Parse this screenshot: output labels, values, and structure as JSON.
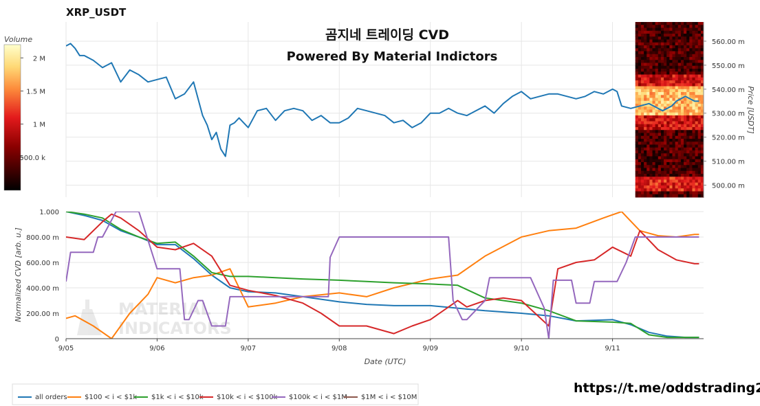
{
  "symbol": "XRP_USDT",
  "footer_link": "https://t.me/oddstrading2",
  "chart_data": [
    {
      "type": "line",
      "title": "곰지네 트레이딩 CVD",
      "subtitle": "Powered By Material Indictors",
      "ylabel": "Price [USDT]",
      "ylim": [
        0.495,
        0.568
      ],
      "yticks": [
        0.5,
        0.51,
        0.52,
        0.53,
        0.54,
        0.55,
        0.56
      ],
      "ytick_labels": [
        "500.00 m",
        "510.00 m",
        "520.00 m",
        "530.00 m",
        "540.00 m",
        "550.00 m",
        "560.00 m"
      ],
      "xlim": [
        0,
        7
      ],
      "grid": true,
      "series": [
        {
          "color": "#1f77b4",
          "x": [
            0,
            0.05,
            0.1,
            0.15,
            0.2,
            0.3,
            0.4,
            0.5,
            0.6,
            0.7,
            0.8,
            0.9,
            1.0,
            1.1,
            1.2,
            1.3,
            1.4,
            1.5,
            1.55,
            1.6,
            1.65,
            1.7,
            1.75,
            1.8,
            1.85,
            1.9,
            1.95,
            2.0,
            2.1,
            2.2,
            2.3,
            2.4,
            2.5,
            2.6,
            2.7,
            2.8,
            2.9,
            3.0,
            3.1,
            3.2,
            3.3,
            3.4,
            3.5,
            3.6,
            3.7,
            3.8,
            3.9,
            4.0,
            4.1,
            4.2,
            4.3,
            4.4,
            4.5,
            4.6,
            4.7,
            4.8,
            4.9,
            5.0,
            5.1,
            5.2,
            5.3,
            5.4,
            5.5,
            5.6,
            5.7,
            5.8,
            5.9,
            6.0,
            6.05,
            6.1,
            6.2,
            6.3,
            6.4,
            6.5,
            6.55,
            6.6,
            6.65,
            6.7,
            6.8,
            6.9,
            6.95
          ],
          "y": [
            0.558,
            0.559,
            0.557,
            0.554,
            0.554,
            0.552,
            0.549,
            0.551,
            0.543,
            0.548,
            0.546,
            0.543,
            0.544,
            0.545,
            0.536,
            0.538,
            0.543,
            0.529,
            0.525,
            0.519,
            0.522,
            0.515,
            0.512,
            0.525,
            0.526,
            0.528,
            0.526,
            0.524,
            0.531,
            0.532,
            0.527,
            0.531,
            0.532,
            0.531,
            0.527,
            0.529,
            0.526,
            0.526,
            0.528,
            0.532,
            0.531,
            0.53,
            0.529,
            0.526,
            0.527,
            0.524,
            0.526,
            0.53,
            0.53,
            0.532,
            0.53,
            0.529,
            0.531,
            0.533,
            0.53,
            0.534,
            0.537,
            0.539,
            0.536,
            0.537,
            0.538,
            0.538,
            0.537,
            0.536,
            0.537,
            0.539,
            0.538,
            0.54,
            0.539,
            0.533,
            0.532,
            0.533,
            0.534,
            0.532,
            0.531,
            0.532,
            0.533,
            0.535,
            0.537,
            0.535,
            0.535
          ]
        }
      ]
    },
    {
      "type": "heatmap",
      "colorbar_title": "Volume",
      "colorbar_ticks": [
        "2 M",
        "1.5 M",
        "1 M",
        "500.0 k"
      ],
      "colorbar_values": [
        2000000,
        1500000,
        1000000,
        500000
      ],
      "zlim": [
        0,
        2200000
      ]
    },
    {
      "type": "line",
      "xlabel": "Date (UTC)",
      "ylabel": "Normalized CVD [arb. u.]",
      "ylim": [
        0,
        1
      ],
      "yticks": [
        0,
        0.2,
        0.4,
        0.6,
        0.8,
        1.0
      ],
      "ytick_labels": [
        "0",
        "200.00 m",
        "400.00 m",
        "600.00 m",
        "800.00 m",
        "1.000"
      ],
      "categories": [
        "9/05",
        "9/06",
        "9/07",
        "9/08",
        "9/09",
        "9/10",
        "9/11"
      ],
      "xlim": [
        0,
        7
      ],
      "grid": true,
      "legend": "bottom",
      "series": [
        {
          "name": "all orders",
          "color": "#1f77b4",
          "x": [
            0,
            0.2,
            0.4,
            0.6,
            0.8,
            1.0,
            1.2,
            1.4,
            1.6,
            1.8,
            2.0,
            2.3,
            2.6,
            3.0,
            3.3,
            3.6,
            4.0,
            4.3,
            4.6,
            5.0,
            5.3,
            5.6,
            6.0,
            6.2,
            6.4,
            6.6,
            6.8,
            6.95
          ],
          "y": [
            1.0,
            0.97,
            0.93,
            0.85,
            0.8,
            0.74,
            0.74,
            0.63,
            0.5,
            0.4,
            0.37,
            0.36,
            0.33,
            0.29,
            0.27,
            0.26,
            0.26,
            0.24,
            0.22,
            0.2,
            0.18,
            0.14,
            0.15,
            0.11,
            0.05,
            0.02,
            0.01,
            0.01
          ]
        },
        {
          "name": "$100 < i < $1k",
          "color": "#ff7f0e",
          "x": [
            0,
            0.1,
            0.3,
            0.5,
            0.7,
            0.9,
            1.0,
            1.2,
            1.4,
            1.6,
            1.8,
            2.0,
            2.3,
            2.6,
            3.0,
            3.3,
            3.6,
            4.0,
            4.3,
            4.6,
            5.0,
            5.3,
            5.6,
            5.9,
            6.1,
            6.3,
            6.5,
            6.7,
            6.9,
            6.95
          ],
          "y": [
            0.16,
            0.18,
            0.1,
            0.0,
            0.2,
            0.35,
            0.48,
            0.44,
            0.48,
            0.5,
            0.55,
            0.25,
            0.28,
            0.33,
            0.36,
            0.33,
            0.4,
            0.47,
            0.5,
            0.65,
            0.8,
            0.85,
            0.87,
            0.95,
            1.0,
            0.85,
            0.81,
            0.8,
            0.82,
            0.82
          ]
        },
        {
          "name": "$1k < i < $10k",
          "color": "#2ca02c",
          "x": [
            0,
            0.2,
            0.4,
            0.6,
            0.8,
            1.0,
            1.2,
            1.4,
            1.6,
            1.8,
            2.0,
            2.3,
            2.6,
            3.0,
            3.3,
            3.6,
            4.0,
            4.3,
            4.6,
            5.0,
            5.3,
            5.6,
            6.0,
            6.2,
            6.4,
            6.6,
            6.8,
            6.95
          ],
          "y": [
            1.0,
            0.98,
            0.95,
            0.86,
            0.8,
            0.75,
            0.76,
            0.65,
            0.52,
            0.49,
            0.49,
            0.48,
            0.47,
            0.46,
            0.45,
            0.44,
            0.43,
            0.42,
            0.32,
            0.28,
            0.22,
            0.14,
            0.13,
            0.12,
            0.03,
            0.01,
            0.01,
            0.01
          ]
        },
        {
          "name": "$10k < i < $100k",
          "color": "#d62728",
          "x": [
            0,
            0.2,
            0.4,
            0.5,
            0.6,
            0.8,
            1.0,
            1.2,
            1.4,
            1.6,
            1.8,
            2.0,
            2.3,
            2.6,
            2.8,
            3.0,
            3.3,
            3.6,
            3.8,
            4.0,
            4.2,
            4.3,
            4.4,
            4.6,
            4.8,
            5.0,
            5.3,
            5.4,
            5.6,
            5.8,
            6.0,
            6.2,
            6.3,
            6.5,
            6.7,
            6.9,
            6.95
          ],
          "y": [
            0.8,
            0.78,
            0.92,
            0.98,
            0.95,
            0.85,
            0.72,
            0.7,
            0.75,
            0.65,
            0.42,
            0.38,
            0.34,
            0.28,
            0.2,
            0.1,
            0.1,
            0.04,
            0.1,
            0.15,
            0.25,
            0.3,
            0.25,
            0.3,
            0.32,
            0.3,
            0.1,
            0.55,
            0.6,
            0.62,
            0.72,
            0.65,
            0.85,
            0.7,
            0.62,
            0.59,
            0.59
          ]
        },
        {
          "name": "$100k < i < $1M",
          "color": "#9467bd",
          "x": [
            0,
            0.05,
            0.3,
            0.35,
            0.4,
            0.55,
            0.6,
            0.75,
            0.8,
            1.0,
            1.01,
            1.25,
            1.3,
            1.35,
            1.45,
            1.5,
            1.6,
            1.65,
            1.75,
            1.8,
            2.2,
            2.3,
            2.6,
            2.75,
            2.8,
            2.88,
            2.9,
            3.0,
            3.01,
            3.5,
            4.2,
            4.25,
            4.35,
            4.4,
            4.6,
            4.65,
            4.7,
            5.0,
            5.1,
            5.25,
            5.3,
            5.35,
            5.55,
            5.6,
            5.75,
            5.8,
            6.05,
            6.15,
            6.25,
            6.95
          ],
          "y": [
            0.45,
            0.68,
            0.68,
            0.8,
            0.8,
            1.0,
            1.0,
            1.0,
            1.0,
            0.55,
            0.55,
            0.55,
            0.15,
            0.15,
            0.3,
            0.3,
            0.1,
            0.1,
            0.1,
            0.33,
            0.33,
            0.33,
            0.33,
            0.33,
            0.33,
            0.33,
            0.64,
            0.8,
            0.8,
            0.8,
            0.8,
            0.3,
            0.15,
            0.15,
            0.3,
            0.48,
            0.48,
            0.48,
            0.48,
            0.24,
            0.0,
            0.46,
            0.46,
            0.28,
            0.28,
            0.45,
            0.45,
            0.6,
            0.8,
            0.8
          ]
        },
        {
          "name": "$1M < i < $10M",
          "color": "#8c564b",
          "x": [],
          "y": []
        }
      ]
    }
  ]
}
